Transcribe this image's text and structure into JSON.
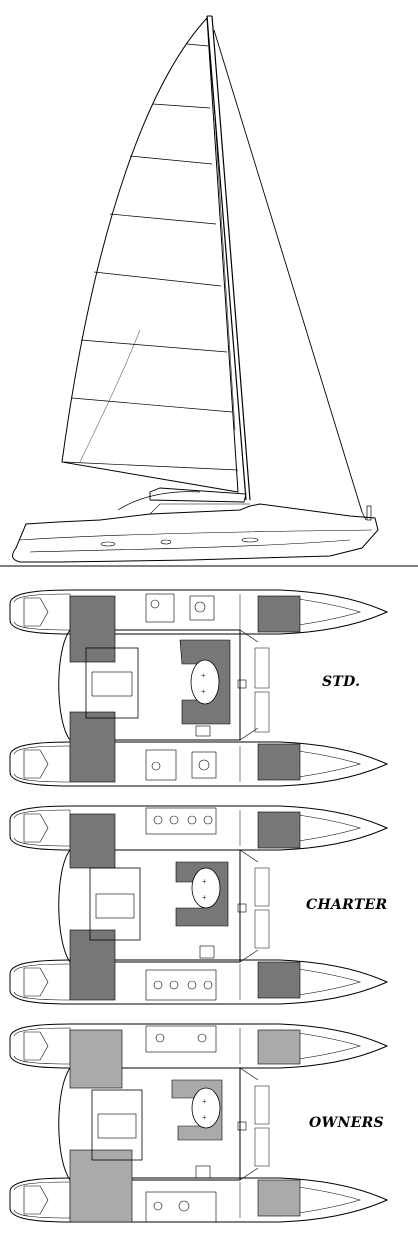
{
  "figure": {
    "layouts": [
      {
        "id": "std",
        "label": "STD."
      },
      {
        "id": "charter",
        "label": "CHARTER"
      },
      {
        "id": "owners",
        "label": "OWNERS"
      }
    ]
  },
  "colors": {
    "line": "#000000",
    "shade_dark": "#777777",
    "shade_light": "#aaaaaa",
    "background": "#ffffff"
  }
}
